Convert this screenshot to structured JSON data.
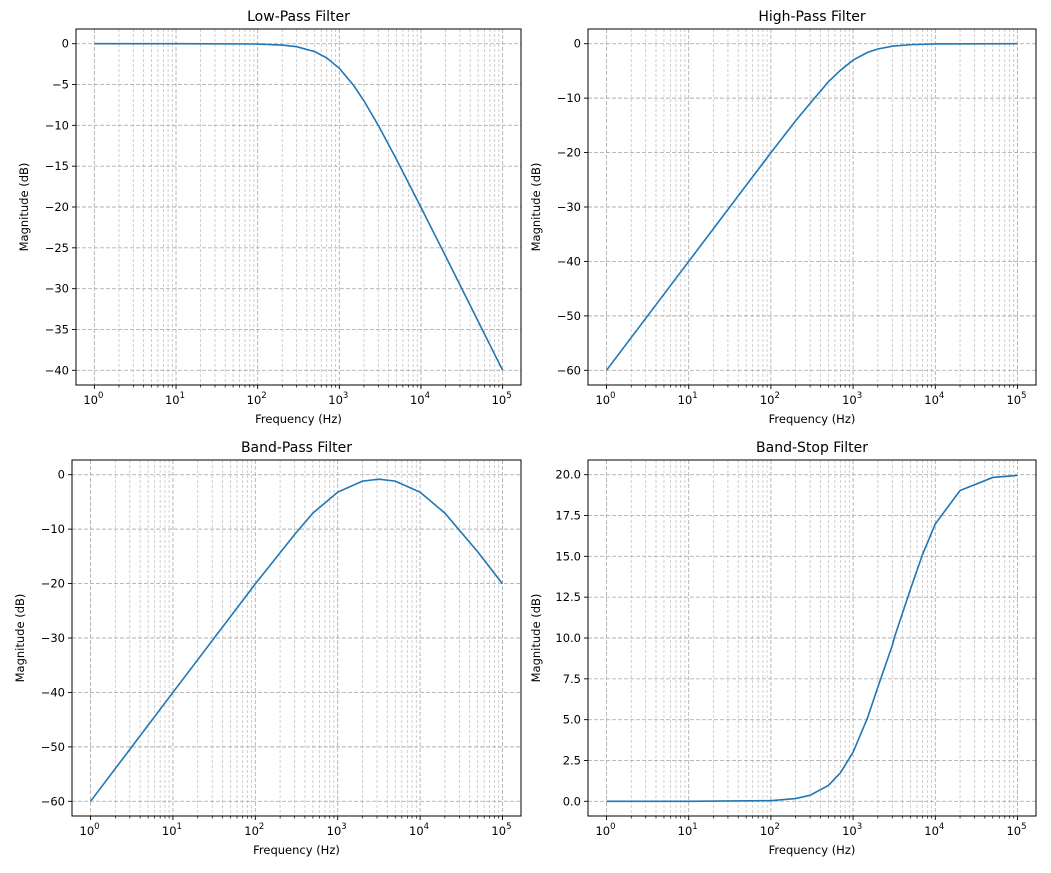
{
  "chart_data": [
    {
      "type": "line",
      "title": "Low-Pass Filter",
      "xlabel": "Frequency (Hz)",
      "ylabel": "Magnitude (dB)",
      "xscale": "log",
      "xlim": [
        1,
        100000
      ],
      "ylim": [
        -40,
        0
      ],
      "xticks": [
        1,
        10,
        100,
        1000,
        10000,
        100000
      ],
      "xtick_labels": [
        {
          "base": "10",
          "exp": "0"
        },
        {
          "base": "10",
          "exp": "1"
        },
        {
          "base": "10",
          "exp": "2"
        },
        {
          "base": "10",
          "exp": "3"
        },
        {
          "base": "10",
          "exp": "4"
        },
        {
          "base": "10",
          "exp": "5"
        }
      ],
      "yticks": [
        0,
        -5,
        -10,
        -15,
        -20,
        -25,
        -30,
        -35,
        -40
      ],
      "ytick_labels": [
        "0",
        "−5",
        "−10",
        "−15",
        "−20",
        "−25",
        "−30",
        "−35",
        "−40"
      ],
      "grid": true,
      "series": [
        {
          "name": "Low-Pass",
          "color": "#1f77b4",
          "x": [
            1,
            10,
            100,
            200,
            300,
            500,
            700,
            1000,
            1500,
            2000,
            3000,
            5000,
            10000,
            20000,
            50000,
            100000
          ],
          "y": [
            0,
            0,
            -0.04,
            -0.17,
            -0.37,
            -0.97,
            -1.74,
            -3.01,
            -5.12,
            -6.99,
            -10.0,
            -14.15,
            -20.04,
            -26.02,
            -33.98,
            -40.0
          ]
        }
      ]
    },
    {
      "type": "line",
      "title": "High-Pass Filter",
      "xlabel": "Frequency (Hz)",
      "ylabel": "Magnitude (dB)",
      "xscale": "log",
      "xlim": [
        1,
        100000
      ],
      "ylim": [
        -60,
        0
      ],
      "xticks": [
        1,
        10,
        100,
        1000,
        10000,
        100000
      ],
      "xtick_labels": [
        {
          "base": "10",
          "exp": "0"
        },
        {
          "base": "10",
          "exp": "1"
        },
        {
          "base": "10",
          "exp": "2"
        },
        {
          "base": "10",
          "exp": "3"
        },
        {
          "base": "10",
          "exp": "4"
        },
        {
          "base": "10",
          "exp": "5"
        }
      ],
      "yticks": [
        0,
        -10,
        -20,
        -30,
        -40,
        -50,
        -60
      ],
      "ytick_labels": [
        "0",
        "−10",
        "−20",
        "−30",
        "−40",
        "−50",
        "−60"
      ],
      "grid": true,
      "series": [
        {
          "name": "High-Pass",
          "color": "#1f77b4",
          "x": [
            1,
            10,
            50,
            100,
            200,
            300,
            500,
            700,
            1000,
            1500,
            2000,
            3000,
            5000,
            10000,
            100000
          ],
          "y": [
            -60.0,
            -40.0,
            -26.03,
            -20.04,
            -14.15,
            -10.97,
            -7.0,
            -4.89,
            -3.01,
            -1.6,
            -0.97,
            -0.46,
            -0.17,
            -0.04,
            0.0
          ]
        }
      ]
    },
    {
      "type": "line",
      "title": "Band-Pass Filter",
      "xlabel": "Frequency (Hz)",
      "ylabel": "Magnitude (dB)",
      "xscale": "log",
      "xlim": [
        1,
        100000
      ],
      "ylim": [
        -60,
        0
      ],
      "xticks": [
        1,
        10,
        100,
        1000,
        10000,
        100000
      ],
      "xtick_labels": [
        {
          "base": "10",
          "exp": "0"
        },
        {
          "base": "10",
          "exp": "1"
        },
        {
          "base": "10",
          "exp": "2"
        },
        {
          "base": "10",
          "exp": "3"
        },
        {
          "base": "10",
          "exp": "4"
        },
        {
          "base": "10",
          "exp": "5"
        }
      ],
      "yticks": [
        0,
        -10,
        -20,
        -30,
        -40,
        -50,
        -60
      ],
      "ytick_labels": [
        "0",
        "−10",
        "−20",
        "−30",
        "−40",
        "−50",
        "−60"
      ],
      "grid": true,
      "series": [
        {
          "name": "Band-Pass",
          "color": "#1f77b4",
          "x": [
            1,
            10,
            100,
            300,
            500,
            1000,
            2000,
            3162,
            5000,
            10000,
            20000,
            50000,
            100000
          ],
          "y": [
            -60.0,
            -40.0,
            -20.05,
            -10.99,
            -7.06,
            -3.21,
            -1.18,
            -0.83,
            -1.18,
            -3.21,
            -7.06,
            -14.15,
            -20.04
          ]
        }
      ]
    },
    {
      "type": "line",
      "title": "Band-Stop Filter",
      "xlabel": "Frequency (Hz)",
      "ylabel": "Magnitude (dB)",
      "xscale": "log",
      "xlim": [
        1,
        100000
      ],
      "ylim": [
        0,
        20
      ],
      "xticks": [
        1,
        10,
        100,
        1000,
        10000,
        100000
      ],
      "xtick_labels": [
        {
          "base": "10",
          "exp": "0"
        },
        {
          "base": "10",
          "exp": "1"
        },
        {
          "base": "10",
          "exp": "2"
        },
        {
          "base": "10",
          "exp": "3"
        },
        {
          "base": "10",
          "exp": "4"
        },
        {
          "base": "10",
          "exp": "5"
        }
      ],
      "yticks": [
        0.0,
        2.5,
        5.0,
        7.5,
        10.0,
        12.5,
        15.0,
        17.5,
        20.0
      ],
      "ytick_labels": [
        "0.0",
        "2.5",
        "5.0",
        "7.5",
        "10.0",
        "12.5",
        "15.0",
        "17.5",
        "20.0"
      ],
      "grid": true,
      "series": [
        {
          "name": "Band-Stop",
          "color": "#1f77b4",
          "x": [
            1,
            10,
            100,
            200,
            300,
            500,
            700,
            1000,
            1500,
            2000,
            3000,
            3162,
            5000,
            7000,
            10000,
            20000,
            50000,
            100000
          ],
          "y": [
            0,
            0,
            0.04,
            0.17,
            0.37,
            0.97,
            1.74,
            3.01,
            5.12,
            6.99,
            9.55,
            10.0,
            13.01,
            15.12,
            16.99,
            19.03,
            19.83,
            19.96
          ]
        }
      ]
    }
  ]
}
